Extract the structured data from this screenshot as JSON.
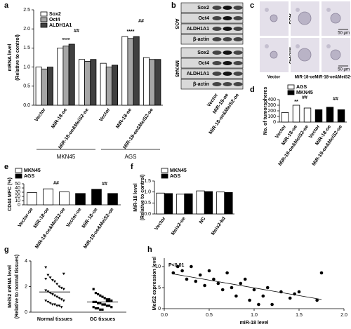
{
  "chart_data": [
    {
      "panel": "a",
      "type": "bar",
      "ylabel": [
        "mRNA level",
        "(Relative to control)"
      ],
      "categories": [
        "Vector",
        "MiR-18-oe",
        "MiR-18-oe&MeiS2-oe",
        "Vector",
        "MiR-18-oe",
        "MiR-18-oe&MeiS2-oe"
      ],
      "groups": [
        "MKN45",
        "AGS"
      ],
      "series": [
        {
          "name": "Sox2",
          "color": "#ffffff",
          "values": [
            1.0,
            1.5,
            1.2,
            1.1,
            1.8,
            1.25
          ]
        },
        {
          "name": "Oct4",
          "color": "#a6a6a6",
          "values": [
            0.95,
            1.55,
            1.15,
            1.0,
            1.75,
            1.2
          ]
        },
        {
          "name": "ALDH1A1",
          "color": "#404040",
          "values": [
            1.0,
            1.6,
            1.2,
            1.05,
            1.8,
            1.2
          ]
        }
      ],
      "ylim": [
        0,
        2.5
      ],
      "yticks": [
        {
          "value": 0,
          "label": "0.0"
        },
        0.5,
        {
          "value": 1,
          "label": "1.0"
        },
        1.5,
        {
          "value": 2,
          "label": "2.0"
        },
        2.5
      ],
      "annotations": [
        "##",
        "##",
        "****",
        "****"
      ]
    },
    {
      "panel": "d",
      "type": "bar",
      "ylabel": "No. of tumorspheres",
      "categories": [
        "Vector",
        "MiR-18-oe",
        "MiR-18-oe&MeiS2-oe",
        "Vector",
        "MiR-18-oe",
        "MiR-18-oe&MeiS2-oe"
      ],
      "series": [
        {
          "name": "AGS",
          "color": "#ffffff",
          "values": [
            170,
            300,
            250,
            null,
            null,
            null
          ]
        },
        {
          "name": "MKN45",
          "color": "#000000",
          "values": [
            null,
            null,
            null,
            220,
            265,
            220
          ]
        }
      ],
      "ylim": [
        0,
        400
      ],
      "yticks": [
        0,
        100,
        200,
        300,
        400
      ],
      "annotations": [
        "**",
        "##",
        "##"
      ]
    },
    {
      "panel": "e",
      "type": "bar",
      "ylabel": "CD44 MFC (%)",
      "categories": [
        "Vector-oe",
        "MiR-18-oe",
        "MiR-18-oe&MeiS2-oe",
        "Vector-oe",
        "MiR-18-oe",
        "MiR-18-oe&MeiS2-oe"
      ],
      "series": [
        {
          "name": "MKN45",
          "color": "#ffffff",
          "values": [
            29,
            38,
            31,
            null,
            null,
            null
          ]
        },
        {
          "name": "AGS",
          "color": "#000000",
          "values": [
            null,
            null,
            null,
            27,
            37,
            27
          ]
        }
      ],
      "ylim": [
        0,
        50
      ],
      "yticks": [
        0,
        10,
        20,
        30,
        40,
        50
      ],
      "annotations": [
        "##",
        "##"
      ]
    },
    {
      "panel": "f",
      "type": "bar",
      "ylabel": [
        "MiR-18 level",
        "(Relative to control)"
      ],
      "categories": [
        "Vector",
        "Meis2-oe",
        "NC",
        "Meis2-kd"
      ],
      "series": [
        {
          "name": "MKN45",
          "color": "#ffffff",
          "values": [
            0.95,
            0.9,
            1.05,
            1.0
          ]
        },
        {
          "name": "AGS",
          "color": "#000000",
          "values": [
            0.93,
            0.92,
            1.02,
            0.98
          ]
        }
      ],
      "ylim": [
        0,
        1.5
      ],
      "yticks": [
        {
          "value": 0,
          "label": "0.0"
        },
        0.5,
        {
          "value": 1,
          "label": "1.0"
        },
        1.5
      ]
    },
    {
      "panel": "g",
      "type": "strip",
      "ylabel": [
        "MeiS2 mRNA level",
        "(Relative to normal tissues)"
      ],
      "categories": [
        "Normal tissues",
        "GC tissues"
      ],
      "values": [
        [
          3.5,
          2.9,
          2.7,
          2.5,
          2.4,
          2.2,
          2.0,
          1.9,
          1.8,
          1.7,
          1.6,
          1.5,
          1.4,
          1.3,
          1.2,
          1.1,
          1.0,
          0.9,
          0.9,
          0.8,
          0.7,
          0.6,
          0.6,
          0.5,
          0.5,
          0.4,
          3.0,
          2.6
        ],
        [
          1.8,
          1.5,
          1.4,
          1.3,
          1.2,
          1.1,
          1.0,
          0.9,
          0.9,
          0.8,
          0.8,
          0.7,
          0.7,
          0.6,
          0.6,
          0.5,
          0.5,
          0.4,
          0.4,
          0.3,
          0.3,
          0.2,
          0.2,
          0.6,
          0.9,
          1.0
        ]
      ],
      "ylim": [
        0,
        4
      ],
      "yticks": [
        0,
        2,
        4
      ]
    },
    {
      "panel": "h",
      "type": "scatter",
      "ylabel": "MeiS2 expression level",
      "xlabel": "miR-18 level",
      "x": [
        0.1,
        0.15,
        0.2,
        0.25,
        0.3,
        0.35,
        0.4,
        0.45,
        0.5,
        0.55,
        0.6,
        0.65,
        0.7,
        0.75,
        0.8,
        0.85,
        0.9,
        0.95,
        1.0,
        1.05,
        1.1,
        1.15,
        1.2,
        1.3,
        1.4,
        1.45,
        1.5,
        1.7,
        1.75
      ],
      "values": [
        8.5,
        10,
        9,
        7,
        10,
        6.5,
        8,
        5.5,
        9,
        7,
        6,
        4.5,
        8.5,
        5,
        3,
        6,
        7,
        2,
        4.5,
        1,
        3,
        5,
        1,
        4,
        2.5,
        3.5,
        4,
        2,
        8.5
      ],
      "xlim": [
        0,
        2
      ],
      "xticks": [
        {
          "value": 0,
          "label": "0.0"
        },
        0.5,
        {
          "value": 1,
          "label": "1.0"
        },
        1.5,
        {
          "value": 2,
          "label": "2.0"
        }
      ],
      "ylim": [
        0,
        12
      ],
      "yticks": [
        0,
        5,
        10
      ],
      "annotations": [
        "P<0.01"
      ]
    }
  ],
  "blot": {
    "panel": "b",
    "cell_lines": [
      "AGS",
      "MKN45"
    ],
    "proteins": [
      "Sox2",
      "Oct4",
      "ALDH1A1",
      "β-actin"
    ],
    "lanes": [
      "Vector",
      "MiR-18-oe",
      "MiR-18-oe&MeiS2-oe"
    ]
  },
  "micrograph": {
    "panel": "c",
    "cell_lines": [
      "AGS",
      "MKN45"
    ],
    "scale_bar": "50 μm",
    "lanes": [
      "Vector",
      "MiR-18-oe",
      "MiR-18-oe&MeiS2-oe"
    ]
  }
}
